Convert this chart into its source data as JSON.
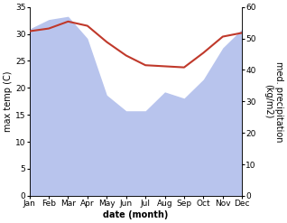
{
  "months": [
    "Jan",
    "Feb",
    "Mar",
    "Apr",
    "May",
    "Jun",
    "Jul",
    "Aug",
    "Sep",
    "Oct",
    "Nov",
    "Dec"
  ],
  "x": [
    0,
    1,
    2,
    3,
    4,
    5,
    6,
    7,
    8,
    9,
    10,
    11
  ],
  "temp": [
    30.5,
    31.0,
    32.3,
    31.5,
    28.5,
    26.0,
    24.2,
    24.0,
    23.8,
    26.5,
    29.5,
    30.2
  ],
  "precip": [
    53,
    56,
    57,
    50,
    32,
    27,
    27,
    33,
    31,
    37,
    47,
    53
  ],
  "temp_color": "#c0392b",
  "precip_color": "#b8c4ed",
  "ylabel_left": "max temp (C)",
  "ylabel_right": "med. precipitation (kg/m2)",
  "xlabel": "date (month)",
  "ylim_left": [
    0,
    35
  ],
  "ylim_right": [
    0,
    60
  ],
  "yticks_left": [
    0,
    5,
    10,
    15,
    20,
    25,
    30,
    35
  ],
  "yticks_right": [
    0,
    10,
    20,
    30,
    40,
    50,
    60
  ],
  "bg_color": "#ffffff",
  "fig_bg_color": "#ffffff",
  "temp_linewidth": 1.5,
  "xlabel_fontsize": 7,
  "ylabel_fontsize": 7,
  "tick_fontsize": 6.5
}
